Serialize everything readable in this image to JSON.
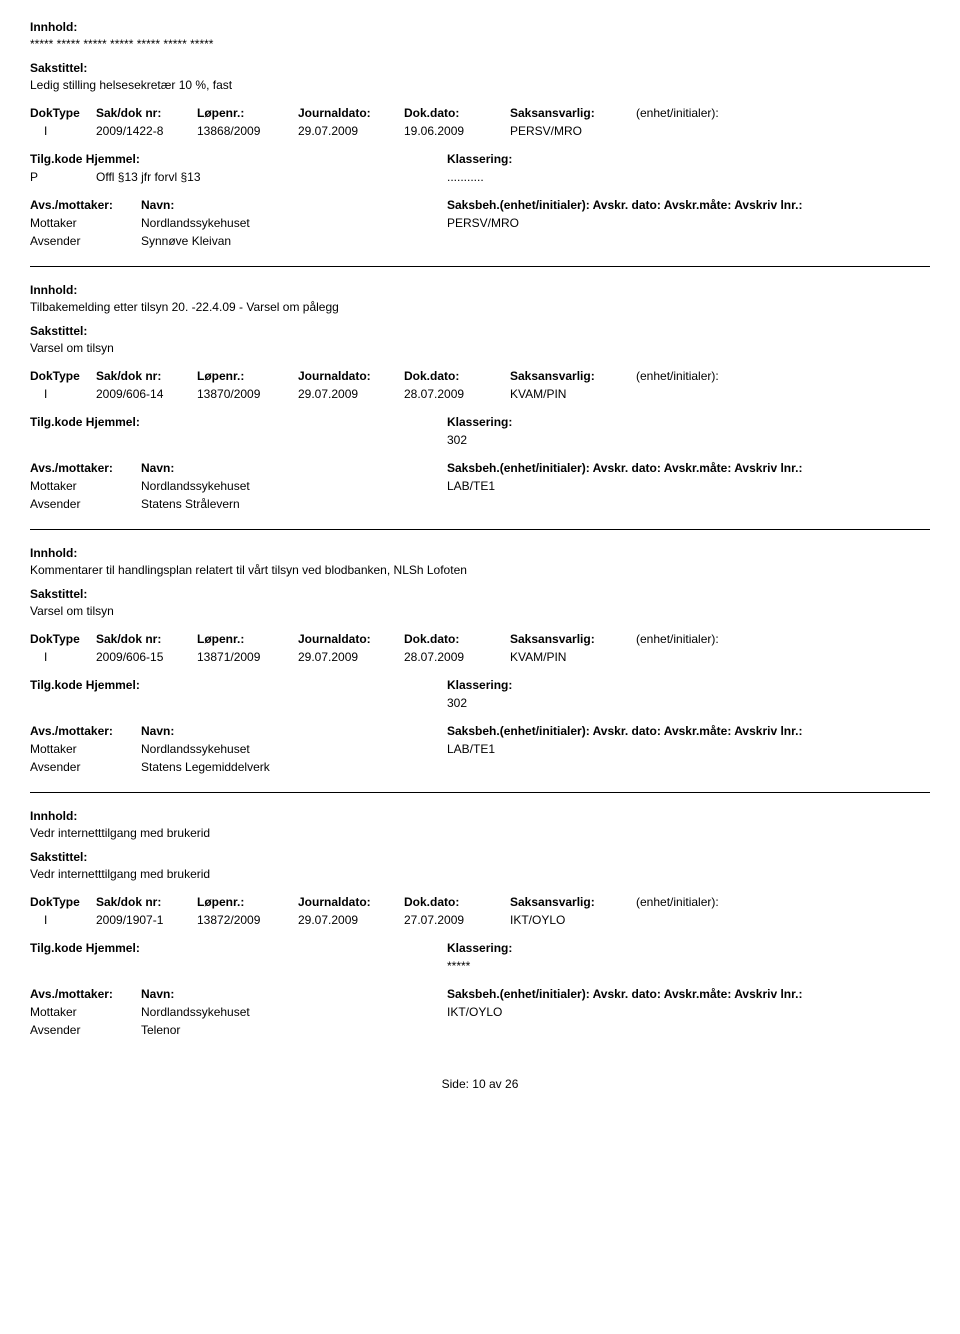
{
  "labels": {
    "innhold": "Innhold:",
    "sakstittel": "Sakstittel:",
    "doktype": "DokType",
    "sakdok": "Sak/dok nr:",
    "lopenr": "Løpenr.:",
    "journaldato": "Journaldato:",
    "dokdato": "Dok.dato:",
    "saksansvarlig": "Saksansvarlig:",
    "enhetinit": "(enhet/initialer):",
    "tilgkode": "Tilg.kode",
    "hjemmel": "Hjemmel:",
    "klassering": "Klassering:",
    "avsmottaker": "Avs./mottaker:",
    "navn": "Navn:",
    "saksbeh": "Saksbeh.(enhet/initialer): Avskr. dato: Avskr.måte: Avskriv lnr.:",
    "mottaker": "Mottaker",
    "avsender": "Avsender"
  },
  "records": [
    {
      "innhold": "***** ***** ***** ***** ***** ***** *****",
      "sakstittel": "Ledig stilling helsesekretær 10 %, fast",
      "doktype": "I",
      "sakdok": "2009/1422-8",
      "lopenr": "13868/2009",
      "journaldato": "29.07.2009",
      "dokdato": "19.06.2009",
      "saksansvarlig": "PERSV/MRO",
      "tilgkode": "P",
      "hjemmel": "Offl §13 jfr forvl §13",
      "klassering": "...........",
      "mottaker_navn": "Nordlandssykehuset",
      "mottaker_saksbeh": "PERSV/MRO",
      "avsender_navn": "Synnøve Kleivan"
    },
    {
      "innhold": "Tilbakemelding etter tilsyn 20. -22.4.09 - Varsel om pålegg",
      "sakstittel": "Varsel om tilsyn",
      "doktype": "I",
      "sakdok": "2009/606-14",
      "lopenr": "13870/2009",
      "journaldato": "29.07.2009",
      "dokdato": "28.07.2009",
      "saksansvarlig": "KVAM/PIN",
      "tilgkode": "",
      "hjemmel": "",
      "klassering": "302",
      "mottaker_navn": "Nordlandssykehuset",
      "mottaker_saksbeh": "LAB/TE1",
      "avsender_navn": "Statens Strålevern"
    },
    {
      "innhold": "Kommentarer til handlingsplan relatert til vårt tilsyn ved blodbanken, NLSh Lofoten",
      "sakstittel": "Varsel om tilsyn",
      "doktype": "I",
      "sakdok": "2009/606-15",
      "lopenr": "13871/2009",
      "journaldato": "29.07.2009",
      "dokdato": "28.07.2009",
      "saksansvarlig": "KVAM/PIN",
      "tilgkode": "",
      "hjemmel": "",
      "klassering": "302",
      "mottaker_navn": "Nordlandssykehuset",
      "mottaker_saksbeh": "LAB/TE1",
      "avsender_navn": "Statens Legemiddelverk"
    },
    {
      "innhold": "Vedr internetttilgang med brukerid",
      "sakstittel": "Vedr internetttilgang med brukerid",
      "doktype": "I",
      "sakdok": "2009/1907-1",
      "lopenr": "13872/2009",
      "journaldato": "29.07.2009",
      "dokdato": "27.07.2009",
      "saksansvarlig": "IKT/OYLO",
      "tilgkode": "",
      "hjemmel": "",
      "klassering": "*****",
      "mottaker_navn": "Nordlandssykehuset",
      "mottaker_saksbeh": "IKT/OYLO",
      "avsender_navn": "Telenor"
    }
  ],
  "footer": {
    "side_label": "Side:",
    "page": "10",
    "av": "av",
    "total": "26"
  }
}
